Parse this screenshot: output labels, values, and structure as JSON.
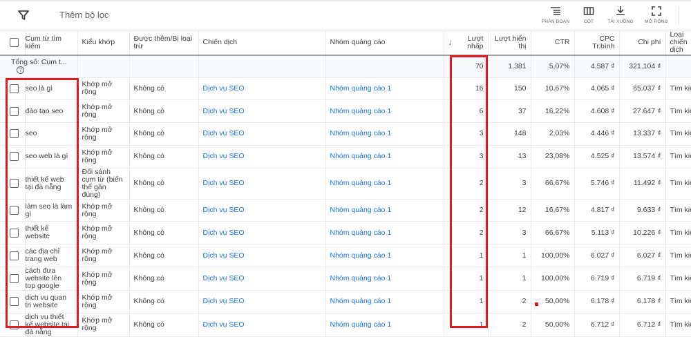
{
  "toolbar": {
    "filter_label": "Thêm bộ lọc",
    "tools": [
      {
        "label": "PHÂN ĐOẠN",
        "icon": "segment-icon"
      },
      {
        "label": "CỘT",
        "icon": "columns-icon"
      },
      {
        "label": "TẢI XUỐNG",
        "icon": "download-icon"
      },
      {
        "label": "MỞ RỘNG",
        "icon": "expand-icon"
      }
    ]
  },
  "table": {
    "headers": [
      "Cụm từ tìm kiếm",
      "Kiểu khớp",
      "Được thêm/Bị loại trừ",
      "Chiến dịch",
      "Nhóm quảng cáo",
      "Lượt nhấp",
      "Lượt hiển thị",
      "CTR",
      "CPC Tr.bình",
      "Chi phí",
      "Loại chiến dịch"
    ],
    "sort_column": "Lượt nhấp",
    "sort_direction": "descending",
    "total": {
      "label": "Tổng số: Cụm t...",
      "clicks": "70",
      "impressions": "1.381",
      "ctr": "5,07%",
      "cpc": "4.587 ₫",
      "cost": "321.104 ₫"
    },
    "rows": [
      {
        "term": "seo là gì",
        "match": "Khớp mở rộng",
        "added": "Không có",
        "campaign": "Dịch vụ SEO",
        "adgroup": "Nhóm quảng cáo 1",
        "clicks": "16",
        "impressions": "150",
        "ctr": "10,67%",
        "cpc": "4.065 ₫",
        "cost": "65.037 ₫",
        "type": "Tìm kiế"
      },
      {
        "term": "đào tạo seo",
        "match": "Khớp mở rộng",
        "added": "Không có",
        "campaign": "Dịch vụ SEO",
        "adgroup": "Nhóm quảng cáo 1",
        "clicks": "6",
        "impressions": "37",
        "ctr": "16,22%",
        "cpc": "4.608 ₫",
        "cost": "27.647 ₫",
        "type": "Tìm kiế"
      },
      {
        "term": "seo",
        "match": "Khớp mở rộng",
        "added": "Không có",
        "campaign": "Dịch vụ SEO",
        "adgroup": "Nhóm quảng cáo 1",
        "clicks": "3",
        "impressions": "148",
        "ctr": "2,03%",
        "cpc": "4.446 ₫",
        "cost": "13.337 ₫",
        "type": "Tìm kiế"
      },
      {
        "term": "seo web là gì",
        "match": "Khớp mở rộng",
        "added": "Không có",
        "campaign": "Dịch vụ SEO",
        "adgroup": "Nhóm quảng cáo 1",
        "clicks": "3",
        "impressions": "13",
        "ctr": "23,08%",
        "cpc": "4.525 ₫",
        "cost": "13.574 ₫",
        "type": "Tìm kiế"
      },
      {
        "term": "thiết kế web tại đà nẵng",
        "match": "Đối sánh cụm từ (biến thể gần đúng)",
        "added": "Không có",
        "campaign": "Dịch vụ SEO",
        "adgroup": "Nhóm quảng cáo 1",
        "clicks": "2",
        "impressions": "3",
        "ctr": "66,67%",
        "cpc": "5.746 ₫",
        "cost": "11.492 ₫",
        "type": "Tìm kiế"
      },
      {
        "term": "làm seo là làm gì",
        "match": "Khớp mở rộng",
        "added": "Không có",
        "campaign": "Dịch vụ SEO",
        "adgroup": "Nhóm quảng cáo 1",
        "clicks": "2",
        "impressions": "12",
        "ctr": "16,67%",
        "cpc": "4.817 ₫",
        "cost": "9.633 ₫",
        "type": "Tìm kiế"
      },
      {
        "term": "thiết kế website",
        "match": "Khớp mở rộng",
        "added": "Không có",
        "campaign": "Dịch vụ SEO",
        "adgroup": "Nhóm quảng cáo 1",
        "clicks": "2",
        "impressions": "3",
        "ctr": "66,67%",
        "cpc": "5.113 ₫",
        "cost": "10.226 ₫",
        "type": "Tìm kiế"
      },
      {
        "term": "các địa chỉ trang web",
        "match": "Khớp mở rộng",
        "added": "Không có",
        "campaign": "Dịch vụ SEO",
        "adgroup": "Nhóm quảng cáo 1",
        "clicks": "1",
        "impressions": "1",
        "ctr": "100,00%",
        "cpc": "6.027 ₫",
        "cost": "6.027 ₫",
        "type": "Tìm kiế"
      },
      {
        "term": "cách đưa website lên top google",
        "match": "Khớp mở rộng",
        "added": "Không có",
        "campaign": "Dịch vụ SEO",
        "adgroup": "Nhóm quảng cáo 1",
        "clicks": "1",
        "impressions": "1",
        "ctr": "100,00%",
        "cpc": "6.719 ₫",
        "cost": "6.719 ₫",
        "type": "Tìm kiế"
      },
      {
        "term": "dich vu quan tri website",
        "match": "Khớp mở rộng",
        "added": "Không có",
        "campaign": "Dịch vụ SEO",
        "adgroup": "Nhóm quảng cáo 1",
        "clicks": "1",
        "impressions": "2",
        "ctr": "50,00%",
        "cpc": "6.178 ₫",
        "cost": "6.178 ₫",
        "type": "Tìm kiế"
      },
      {
        "term": "dịch vụ thiết kế website tại đà nẵng",
        "match": "Khớp mở rộng",
        "added": "Không có",
        "campaign": "Dịch vụ SEO",
        "adgroup": "Nhóm quảng cáo 1",
        "clicks": "1",
        "impressions": "2",
        "ctr": "50,00%",
        "cpc": "6.712 ₫",
        "cost": "6.712 ₫",
        "type": "Tìm kiế"
      }
    ]
  },
  "colors": {
    "link": "#1a73e8",
    "highlight": "#e01b24"
  }
}
